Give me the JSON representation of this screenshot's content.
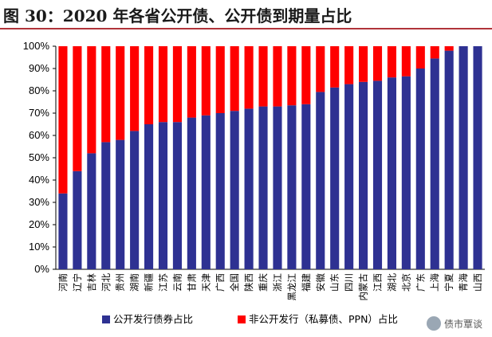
{
  "title": "图 30：2020 年各省公开债、公开债到期量占比",
  "watermark": "债市覃谈",
  "colors": {
    "public": "#2e3192",
    "nonpublic": "#ff0000",
    "rule": "#b0333a"
  },
  "chart_data": {
    "type": "bar",
    "stacked": true,
    "categories": [
      "河南",
      "辽宁",
      "吉林",
      "河北",
      "贵州",
      "湖南",
      "新疆",
      "江苏",
      "云南",
      "甘肃",
      "天津",
      "广西",
      "全国",
      "陕西",
      "重庆",
      "浙江",
      "黑龙江",
      "福建",
      "安徽",
      "山东",
      "四川",
      "内蒙古",
      "江西",
      "湖北",
      "北京",
      "广东",
      "上海",
      "宁夏",
      "青海",
      "山西"
    ],
    "series": [
      {
        "name": "公开发行债券占比",
        "values": [
          34,
          44,
          52,
          57,
          58,
          62,
          65,
          66,
          66,
          68,
          69,
          70,
          71,
          72,
          73,
          73,
          73.5,
          74,
          79.5,
          81.5,
          83,
          84,
          84.5,
          86,
          86.5,
          90,
          94.5,
          98,
          100,
          100
        ]
      },
      {
        "name": "非公开发行（私募债、PPN）占比",
        "values": [
          66,
          56,
          48,
          43,
          42,
          38,
          35,
          34,
          34,
          32,
          31,
          30,
          29,
          28,
          27,
          27,
          26.5,
          26,
          20.5,
          18.5,
          17,
          16,
          15.5,
          14,
          13.5,
          10,
          5.5,
          2,
          0,
          0
        ]
      }
    ],
    "y_ticks": [
      "0%",
      "10%",
      "20%",
      "30%",
      "40%",
      "50%",
      "60%",
      "70%",
      "80%",
      "90%",
      "100%"
    ],
    "ylim": [
      0,
      100
    ],
    "legend_position": "bottom-left"
  }
}
